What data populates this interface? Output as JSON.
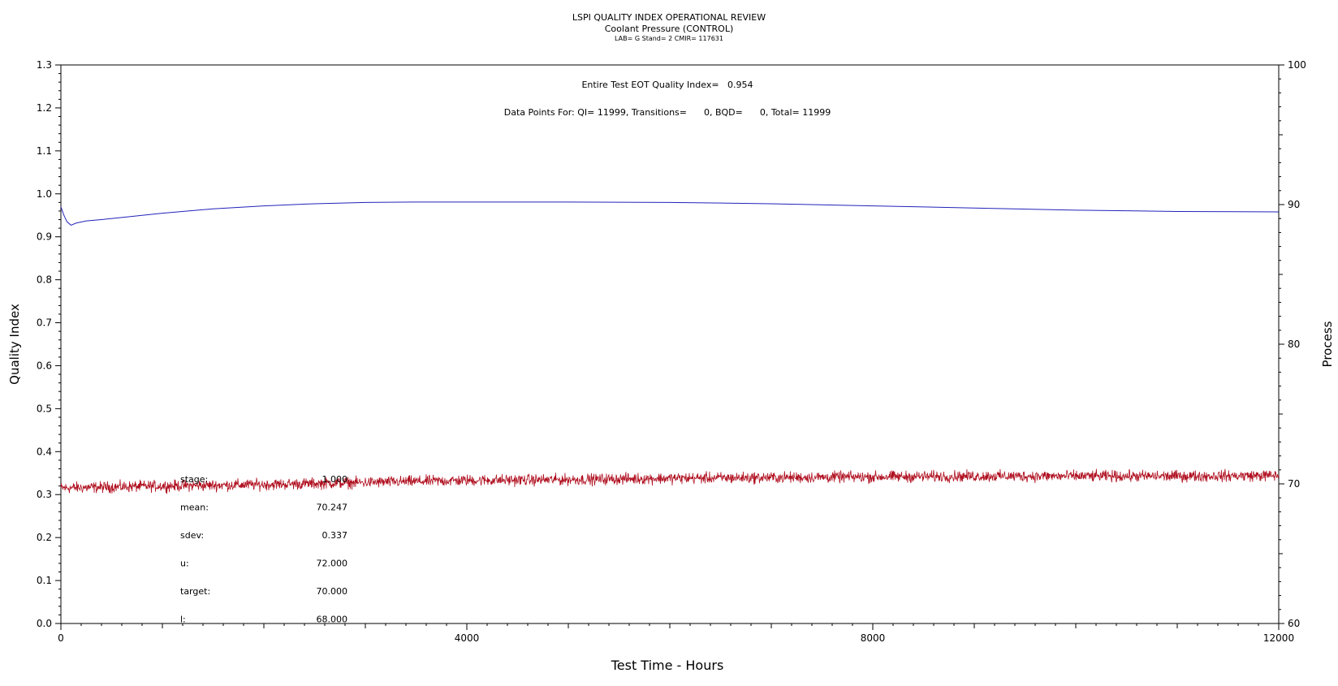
{
  "title": "LSPI QUALITY INDEX OPERATIONAL REVIEW",
  "subtitle": "Coolant Pressure (CONTROL)",
  "subtitle2": "LAB= G Stand= 2 CMIR= 117631",
  "chart_data": {
    "type": "line",
    "xlabel": "Test Time - Hours",
    "ylabel_left": "Quality Index",
    "ylabel_right": "Process",
    "xlim": [
      0,
      12000
    ],
    "ylim_left": [
      0.0,
      1.3
    ],
    "ylim_right": [
      60,
      100
    ],
    "x_ticks": [
      "0",
      "4000",
      "8000",
      "12000"
    ],
    "y_left_ticks": [
      "0.0",
      "0.1",
      "0.2",
      "0.3",
      "0.4",
      "0.5",
      "0.6",
      "0.7",
      "0.8",
      "0.9",
      "1.0",
      "1.1",
      "1.2",
      "1.3"
    ],
    "y_right_ticks": [
      "60",
      "70",
      "80",
      "90",
      "100"
    ],
    "grid": false,
    "annotations": {
      "eot_line": "Entire Test EOT Quality Index=   0.954",
      "points_line": "Data Points For: QI= 11999, Transitions=      0, BQD=      0, Total= 11999"
    },
    "stats": [
      {
        "label": "stage:",
        "value": "1.000"
      },
      {
        "label": "mean:",
        "value": "70.247"
      },
      {
        "label": "sdev:",
        "value": "0.337"
      },
      {
        "label": "u:",
        "value": "72.000"
      },
      {
        "label": "target:",
        "value": "70.000"
      },
      {
        "label": "l:",
        "value": "68.000"
      }
    ],
    "series": [
      {
        "axis": "left",
        "color": "#2222bb",
        "x": [
          0,
          30,
          60,
          100,
          150,
          250,
          400,
          600,
          1000,
          1500,
          2000,
          2500,
          3000,
          3500,
          4000,
          5000,
          6000,
          7000,
          8000,
          9000,
          10000,
          11000,
          11999
        ],
        "y": [
          0.97,
          0.95,
          0.935,
          0.927,
          0.932,
          0.937,
          0.94,
          0.945,
          0.955,
          0.965,
          0.972,
          0.977,
          0.98,
          0.981,
          0.981,
          0.981,
          0.98,
          0.977,
          0.972,
          0.967,
          0.962,
          0.959,
          0.958
        ]
      },
      {
        "axis": "right",
        "color": "#b01020",
        "x": [
          0,
          1000,
          2000,
          3000,
          4000,
          5000,
          6000,
          7000,
          8000,
          9000,
          10000,
          11000,
          11999
        ],
        "y": [
          69.7,
          69.85,
          69.95,
          70.1,
          70.25,
          70.3,
          70.4,
          70.45,
          70.5,
          70.55,
          70.55,
          70.55,
          70.6
        ],
        "noise_sdev": 0.2
      }
    ]
  }
}
